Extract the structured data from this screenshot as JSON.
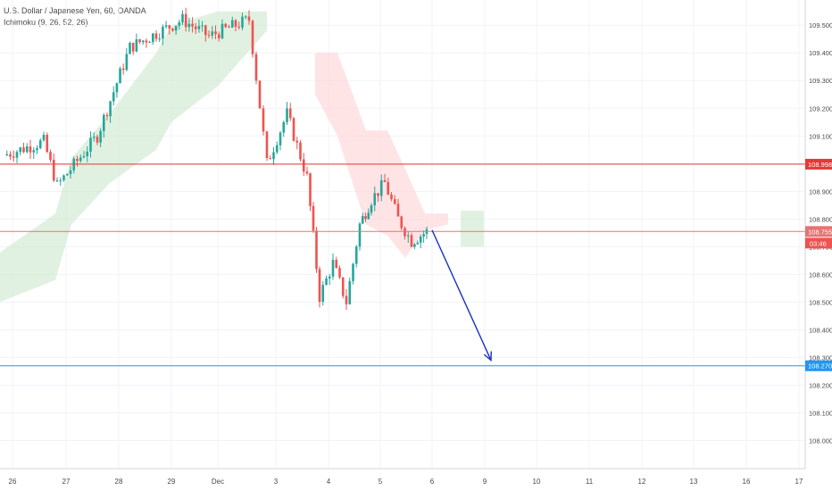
{
  "legend": {
    "symbol_line": "U.S. Dollar / Japanese Yen, 60, OANDA",
    "indicator_line": "Ichimoku (9, 26, 52, 26)"
  },
  "chart_data": {
    "type": "candlestick",
    "instrument": "U.S. Dollar / Japanese Yen, 60, OANDA",
    "indicator": "Ichimoku (9, 26, 52, 26)",
    "ylim": [
      107.98,
      109.55
    ],
    "y_ticks": [
      "109.500",
      "109.400",
      "109.300",
      "109.200",
      "109.100",
      "109.000",
      "108.900",
      "108.800",
      "108.700",
      "108.600",
      "108.500",
      "108.400",
      "108.300",
      "108.200",
      "108.100",
      "108.000"
    ],
    "x_ticks": [
      "26",
      "27",
      "28",
      "29",
      "Dec",
      "3",
      "4",
      "5",
      "6",
      "9",
      "10",
      "11",
      "12",
      "13",
      "16",
      "17"
    ],
    "horizontal_lines": [
      {
        "price": 108.998,
        "label": "108.998",
        "color": "#e53935"
      },
      {
        "price": 108.755,
        "label": "108.755",
        "color": "#e57373"
      },
      {
        "price": 108.27,
        "label": "108.270",
        "color": "#2196f3"
      }
    ],
    "countdown_label": "03:46",
    "projection_arrow": {
      "from": {
        "x": "6",
        "price": 108.76
      },
      "to": {
        "x": "9",
        "price": 108.29
      },
      "color": "#1a2ec8"
    },
    "price_path": [
      {
        "x": "26",
        "price": 109.03
      },
      {
        "x": "26",
        "price": 109.08
      },
      {
        "x": "27",
        "price": 108.92
      },
      {
        "x": "27",
        "price": 109.1
      },
      {
        "x": "28",
        "price": 109.42
      },
      {
        "x": "29",
        "price": 109.52
      },
      {
        "x": "Dec",
        "price": 109.46
      },
      {
        "x": "Dec",
        "price": 109.52
      },
      {
        "x": "3",
        "price": 109.0
      },
      {
        "x": "3",
        "price": 109.18
      },
      {
        "x": "3",
        "price": 108.95
      },
      {
        "x": "4",
        "price": 108.52
      },
      {
        "x": "4",
        "price": 108.64
      },
      {
        "x": "4",
        "price": 108.5
      },
      {
        "x": "4",
        "price": 108.78
      },
      {
        "x": "5",
        "price": 108.87
      },
      {
        "x": "5",
        "price": 108.93
      },
      {
        "x": "5",
        "price": 108.8
      },
      {
        "x": "5",
        "price": 108.72
      },
      {
        "x": "6",
        "price": 108.755
      }
    ]
  },
  "colors": {
    "up_candle": "#26a69a",
    "down_candle": "#ef5350",
    "kumo_bull": "#c8e6c9",
    "kumo_bear": "#ffcdd2",
    "grid": "#f0f3fa",
    "axis_text": "#4a4a4a"
  }
}
